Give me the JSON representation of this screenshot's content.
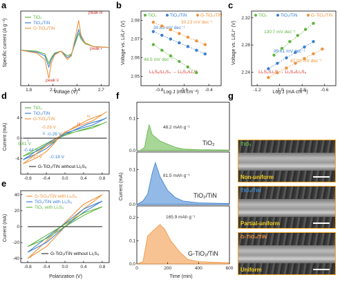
{
  "panels": {
    "a": {
      "label": "a",
      "xlabel": "Voltage (V)",
      "ylabel": "Specific current (A g⁻¹)",
      "xticks": [
        "1.8",
        "2.1",
        "2.4",
        "2.7"
      ],
      "legend": [
        "TiO₂",
        "TiO₂/TiN",
        "G-TiO₂/TiN"
      ],
      "annotations": [
        "peak iii",
        "peak i",
        "peak ii"
      ]
    },
    "b": {
      "label": "b",
      "xlabel": "Log J (mA cm⁻²)",
      "ylabel": "Voltage vs. Li/Li⁺ (V)",
      "xticks": [
        "-0.8",
        "-0.6",
        "-0.4"
      ],
      "yticks": [
        "2.05",
        "2.06",
        "2.07",
        "2.08"
      ],
      "legend": [
        "TiO₂",
        "TiO₂/TiN",
        "G-TiO₂/TiN"
      ],
      "slopes": [
        "30.23 mV dec⁻¹",
        "30.83 mV dec⁻¹",
        "46.5 mV dec⁻¹"
      ],
      "reaction": "Li₂S₈/Li₂S₄ → Li₂S₂/Li₂S"
    },
    "c": {
      "label": "c",
      "xlabel": "Log J (mA cm⁻²)",
      "ylabel": "Voltage vs. Li/Li⁺ (V)",
      "xticks": [
        "-1.2",
        "-1.0",
        "-0.8",
        "-0.6"
      ],
      "yticks": [
        "2.24",
        "2.28",
        "2.32"
      ],
      "legend": [
        "TiO₂",
        "TiO₂/TiN",
        "G-TiO₂/TiN"
      ],
      "slopes": [
        "130.7 mV dec⁻¹",
        "99.61 mV dec⁻¹",
        "87.02 mV dec⁻¹"
      ],
      "reaction": "Li₂S₂/Li₂S → Li₂S₄/Li₂S₈"
    },
    "d": {
      "label": "d",
      "xlabel": "",
      "ylabel": "Current (mA)",
      "xticks": [
        "-0.8",
        "-0.4",
        "0.0",
        "0.4",
        "0.8"
      ],
      "yticks": [
        "-4",
        "0",
        "4"
      ],
      "legend": [
        "TiO₂",
        "TiO₂/TiN",
        "G-TiO₂/TiN"
      ],
      "blank_legend": "G-TiO₂/TiN without Li₂S₆",
      "peak_labels": [
        "i",
        "ii",
        "iii",
        "iv"
      ],
      "peak_voltages": [
        "-0.29 V",
        "-0.26 V",
        "0.81 V",
        "-0.44 V",
        "-0.37 V",
        "-0.18 V"
      ]
    },
    "e": {
      "label": "e",
      "xlabel": "Polarization (V)",
      "ylabel": "Current (mA)",
      "xticks": [
        "-0.8",
        "-0.4",
        "0.0",
        "0.4",
        "0.8"
      ],
      "yticks": [
        "-40",
        "-20",
        "0",
        "20",
        "40"
      ],
      "legend": [
        "G-TiO₂/TiN with Li₂S₆",
        "TiO₂/TiN with Li₂S₆",
        "TiO₂ with Li₂S₆"
      ],
      "blank_legend": "G-TiO₂/TiN without Li₂S₆"
    },
    "f": {
      "label": "f",
      "xlabel": "Time (min)",
      "ylabel": "Current (mA)",
      "xticks": [
        "0",
        "200",
        "400",
        "600"
      ],
      "subplots": [
        {
          "name": "TiO₂",
          "capacity": "48.2 mAh g⁻¹",
          "yticks": [
            "0.0",
            "0.1"
          ]
        },
        {
          "name": "TiO₂/TiN",
          "capacity": "81.5 mAh g⁻¹",
          "yticks": [
            "0.0",
            "0.1"
          ]
        },
        {
          "name": "G-TiO₂/TiN",
          "capacity": "165.9 mAh g⁻¹",
          "yticks": [
            "0.0",
            "0.1",
            "0.2"
          ]
        }
      ]
    },
    "g": {
      "label": "g",
      "images": [
        {
          "title": "TiO₂",
          "caption": "Non-uniform"
        },
        {
          "title": "TiO₂/TiN",
          "caption": "Partial-uniform"
        },
        {
          "title": "G-TiO₂/TiN",
          "caption": "Uniform"
        }
      ]
    }
  },
  "colors": {
    "tio2": "#5fb541",
    "tin": "#3b7fd1",
    "g": "#f0923a",
    "blank": "#111111",
    "red": "#d4312d"
  },
  "chart_data": [
    {
      "type": "line",
      "panel": "a",
      "xlim": [
        1.7,
        2.8
      ],
      "series": [
        {
          "name": "TiO₂",
          "x": [
            1.7,
            1.9,
            2.0,
            2.05,
            2.08,
            2.12,
            2.2,
            2.28,
            2.33,
            2.38,
            2.42,
            2.45,
            2.5,
            2.6,
            2.8
          ],
          "y": [
            -0.1,
            -0.15,
            -0.3,
            -0.8,
            -0.5,
            -0.25,
            -0.15,
            -0.4,
            -0.3,
            0.3,
            0.8,
            0.5,
            0.25,
            0.1,
            0.05
          ]
        },
        {
          "name": "TiO₂/TiN",
          "x": [
            1.7,
            1.9,
            2.0,
            2.05,
            2.08,
            2.12,
            2.2,
            2.28,
            2.33,
            2.38,
            2.42,
            2.45,
            2.5,
            2.6,
            2.8
          ],
          "y": [
            -0.1,
            -0.2,
            -0.4,
            -1.0,
            -0.6,
            -0.3,
            -0.15,
            -0.5,
            -0.35,
            0.4,
            1.0,
            0.6,
            0.3,
            0.1,
            0.05
          ]
        },
        {
          "name": "G-TiO₂/TiN",
          "x": [
            1.7,
            1.9,
            2.0,
            2.05,
            2.08,
            2.12,
            2.2,
            2.28,
            2.33,
            2.38,
            2.42,
            2.45,
            2.5,
            2.6,
            2.8
          ],
          "y": [
            -0.1,
            -0.25,
            -0.6,
            -1.6,
            -0.8,
            -0.35,
            -0.15,
            -0.6,
            -0.4,
            0.6,
            1.5,
            0.7,
            0.3,
            0.1,
            0.05
          ]
        }
      ]
    },
    {
      "type": "scatter",
      "panel": "b",
      "xlim": [
        -0.95,
        -0.3
      ],
      "ylim": [
        2.045,
        2.085
      ],
      "series": [
        {
          "name": "TiO₂",
          "x": [
            -0.85,
            -0.78,
            -0.71,
            -0.64,
            -0.57,
            -0.5
          ],
          "y": [
            2.067,
            2.064,
            2.061,
            2.058,
            2.055,
            2.052
          ]
        },
        {
          "name": "TiO₂/TiN",
          "x": [
            -0.85,
            -0.78,
            -0.71,
            -0.64,
            -0.57,
            -0.5,
            -0.43
          ],
          "y": [
            2.074,
            2.072,
            2.07,
            2.068,
            2.066,
            2.064,
            2.062
          ]
        },
        {
          "name": "G-TiO₂/TiN",
          "x": [
            -0.85,
            -0.78,
            -0.71,
            -0.64,
            -0.57,
            -0.5,
            -0.43
          ],
          "y": [
            2.079,
            2.077,
            2.075,
            2.073,
            2.071,
            2.069,
            2.067
          ]
        }
      ]
    },
    {
      "type": "scatter",
      "panel": "c",
      "xlim": [
        -1.25,
        -0.5
      ],
      "ylim": [
        2.22,
        2.33
      ],
      "series": [
        {
          "name": "TiO₂",
          "x": [
            -1.05,
            -0.98,
            -0.91,
            -0.84,
            -0.77,
            -0.7
          ],
          "y": [
            2.265,
            2.275,
            2.285,
            2.294,
            2.303,
            2.312
          ]
        },
        {
          "name": "TiO₂/TiN",
          "x": [
            -1.1,
            -1.02,
            -0.94,
            -0.86,
            -0.78,
            -0.7
          ],
          "y": [
            2.245,
            2.253,
            2.261,
            2.269,
            2.277,
            2.285
          ]
        },
        {
          "name": "G-TiO₂/TiN",
          "x": [
            -1.1,
            -1.02,
            -0.94,
            -0.86,
            -0.78,
            -0.7,
            -0.62
          ],
          "y": [
            2.232,
            2.239,
            2.246,
            2.253,
            2.26,
            2.267,
            2.274
          ]
        }
      ]
    },
    {
      "type": "line",
      "panel": "d",
      "xlim": [
        -0.95,
        0.95
      ],
      "ylim": [
        -7,
        7
      ],
      "series": [
        {
          "name": "TiO₂",
          "x": [
            -0.9,
            -0.6,
            -0.4,
            -0.26,
            -0.1,
            0.2,
            0.5,
            0.8,
            0.9,
            0.6,
            0.3,
            0.0,
            -0.29,
            -0.5,
            -0.9
          ],
          "y": [
            -3.5,
            -2.5,
            -1.5,
            -0.8,
            0.2,
            1.2,
            2.0,
            2.8,
            3.2,
            2.0,
            1.4,
            0.8,
            -0.5,
            -1.5,
            -3.5
          ]
        },
        {
          "name": "TiO₂/TiN",
          "x": [
            -0.9,
            -0.6,
            -0.4,
            -0.26,
            -0.1,
            0.2,
            0.5,
            0.8,
            0.9,
            0.6,
            0.3,
            0.0,
            -0.29,
            -0.5,
            -0.9
          ],
          "y": [
            -4.2,
            -3.0,
            -2.0,
            -1.0,
            0.3,
            1.6,
            2.8,
            3.6,
            4.0,
            2.6,
            1.8,
            1.0,
            -0.6,
            -1.8,
            -4.2
          ]
        },
        {
          "name": "G-TiO₂/TiN",
          "x": [
            -0.9,
            -0.6,
            -0.4,
            -0.26,
            -0.1,
            0.2,
            0.5,
            0.8,
            0.9,
            0.6,
            0.3,
            0.0,
            -0.29,
            -0.5,
            -0.9
          ],
          "y": [
            -5.0,
            -3.8,
            -2.6,
            -1.3,
            0.5,
            2.2,
            3.6,
            4.6,
            5.2,
            3.4,
            2.4,
            1.2,
            -0.8,
            -2.2,
            -5.0
          ]
        },
        {
          "name": "G-TiO₂/TiN without Li₂S₆",
          "x": [
            -0.9,
            0.9
          ],
          "y": [
            0,
            0
          ]
        }
      ]
    },
    {
      "type": "line",
      "panel": "e",
      "xlim": [
        -0.95,
        0.95
      ],
      "ylim": [
        -45,
        45
      ],
      "series": [
        {
          "name": "G-TiO₂/TiN with Li₂S₆",
          "x": [
            -0.8,
            -0.4,
            0,
            0.4,
            0.8,
            0.4,
            0,
            -0.4,
            -0.8
          ],
          "y": [
            -40,
            -25,
            0,
            22,
            40,
            28,
            5,
            -18,
            -40
          ]
        },
        {
          "name": "TiO₂/TiN with Li₂S₆",
          "x": [
            -0.8,
            -0.4,
            0,
            0.4,
            0.8,
            0.4,
            0,
            -0.4,
            -0.8
          ],
          "y": [
            -32,
            -20,
            0,
            18,
            32,
            22,
            4,
            -14,
            -32
          ]
        },
        {
          "name": "TiO₂ with Li₂S₆",
          "x": [
            -0.8,
            -0.4,
            0,
            0.4,
            0.8,
            0.4,
            0,
            -0.4,
            -0.8
          ],
          "y": [
            -25,
            -15,
            0,
            14,
            25,
            17,
            3,
            -11,
            -25
          ]
        },
        {
          "name": "G-TiO₂/TiN without Li₂S₆",
          "x": [
            -0.8,
            0.8
          ],
          "y": [
            0,
            0
          ]
        }
      ]
    },
    {
      "type": "area",
      "panel": "f",
      "xlim": [
        0,
        600
      ],
      "series": [
        {
          "name": "TiO₂",
          "x": [
            0,
            20,
            50,
            70,
            80,
            100,
            150,
            200,
            250,
            300,
            400,
            600
          ],
          "y": [
            0.0,
            0.0,
            0.01,
            0.06,
            0.08,
            0.05,
            0.03,
            0.02,
            0.01,
            0.005,
            0.003,
            0.002
          ]
        },
        {
          "name": "TiO₂/TiN",
          "x": [
            0,
            40,
            70,
            100,
            120,
            150,
            200,
            250,
            300,
            400,
            600
          ],
          "y": [
            0.0,
            0.01,
            0.03,
            0.09,
            0.12,
            0.08,
            0.04,
            0.02,
            0.01,
            0.005,
            0.003
          ]
        },
        {
          "name": "G-TiO₂/TiN",
          "x": [
            0,
            40,
            70,
            100,
            150,
            180,
            220,
            280,
            330,
            400,
            600
          ],
          "y": [
            0.0,
            0.01,
            0.12,
            0.14,
            0.17,
            0.15,
            0.1,
            0.05,
            0.02,
            0.01,
            0.005
          ]
        }
      ]
    }
  ]
}
